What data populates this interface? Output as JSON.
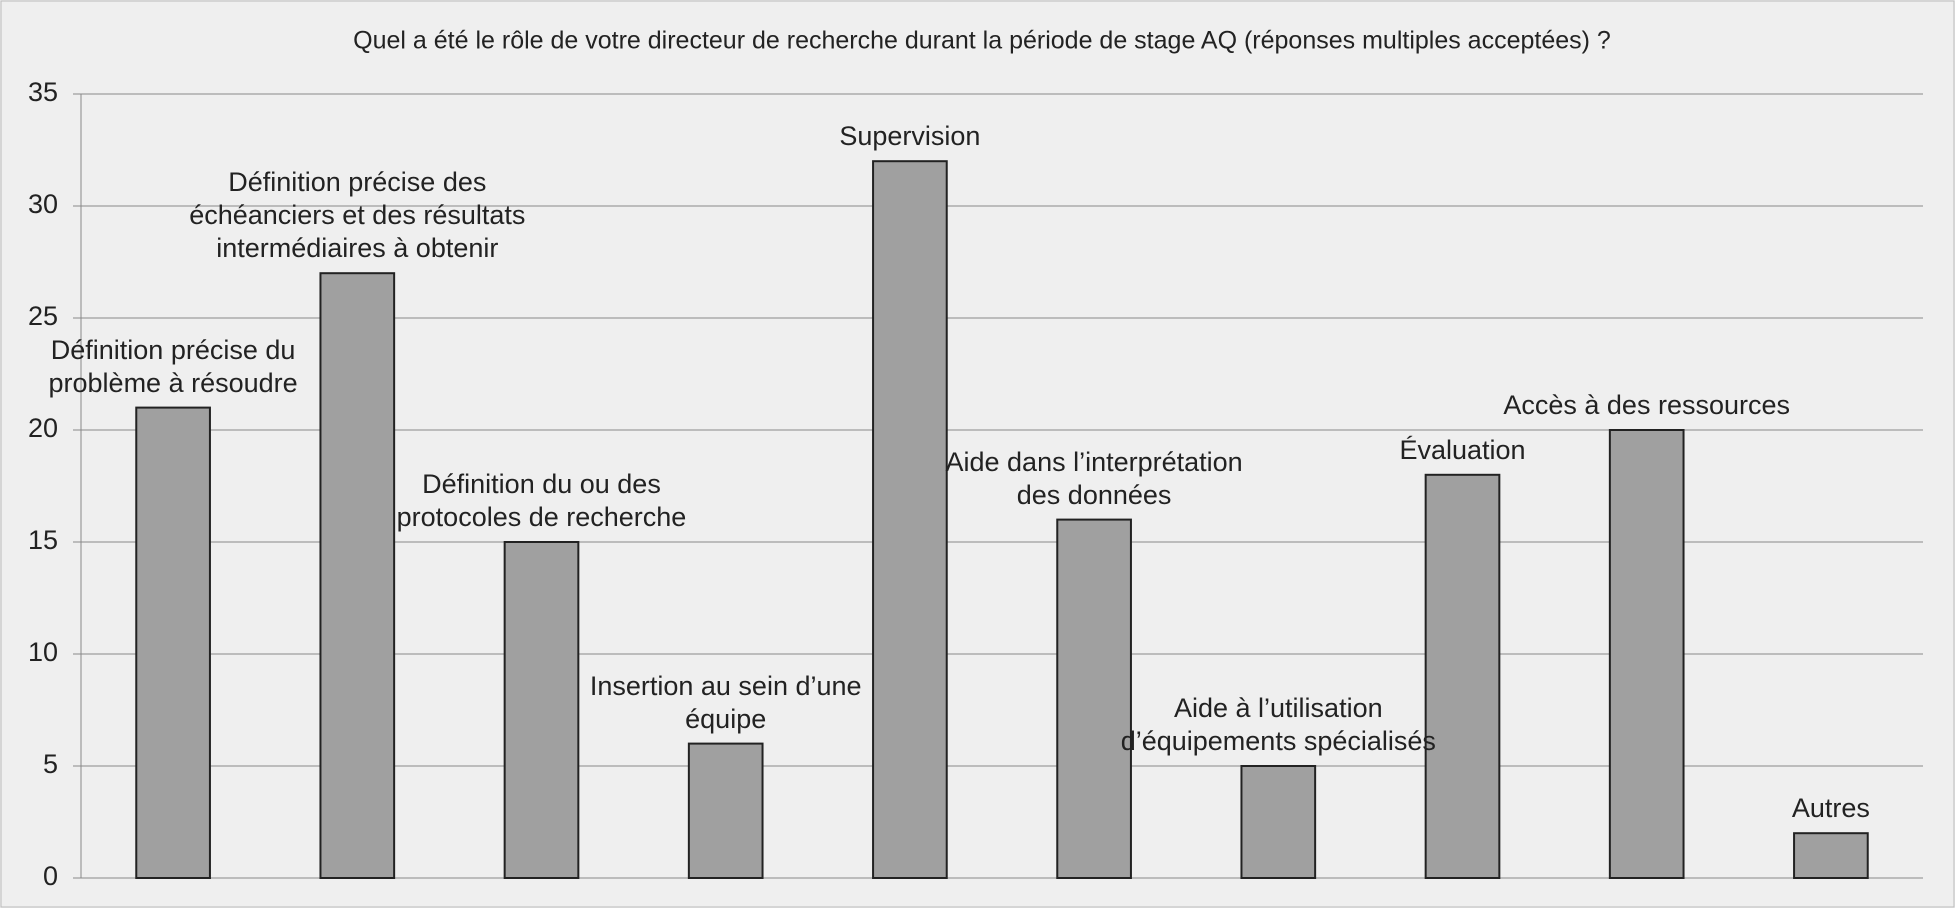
{
  "chart_data": {
    "type": "bar",
    "title": "Quel a été le rôle de votre directeur de recherche durant la période de stage AQ (réponses multiples acceptées) ?",
    "categories": [
      "Définition précise du problème à résoudre",
      "Définition précise des échéanciers et des résultats intermédiaires à obtenir",
      "Définition du ou des protocoles de recherche",
      "Insertion au sein d’une équipe",
      "Supervision",
      "Aide dans l’interprétation des données",
      "Aide à l’utilisation d’équipements spécialisés",
      "Évaluation",
      "Accès à des ressources",
      "Autres"
    ],
    "values": [
      21,
      27,
      15,
      6,
      32,
      16,
      5,
      18,
      20,
      2
    ],
    "color": "#a0a0a0",
    "ylim": [
      0,
      35
    ],
    "yticks": [
      0,
      5,
      10,
      15,
      20,
      25,
      30,
      35
    ],
    "grid": true
  }
}
